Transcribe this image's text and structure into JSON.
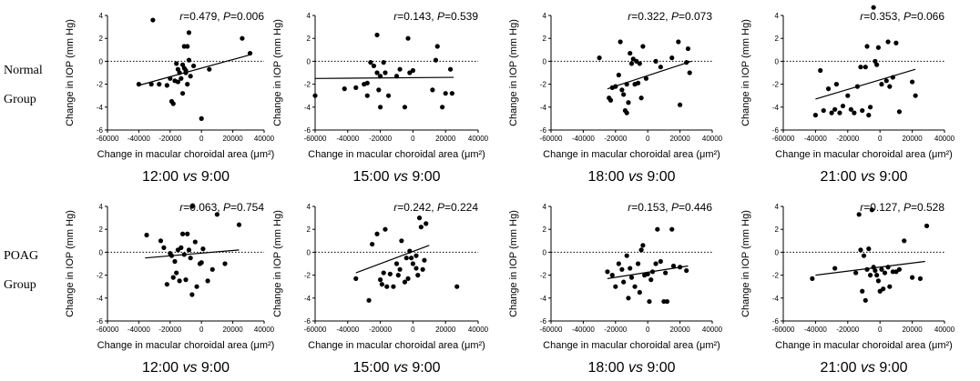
{
  "row_labels": [
    {
      "line1": "Normal",
      "line2": "Group"
    },
    {
      "line1": "POAG",
      "line2": "Group"
    }
  ],
  "chart_data": [
    {
      "type": "scatter",
      "group": "Normal",
      "caption": {
        "time": "12:00",
        "vs": "vs",
        "base": "9:00"
      },
      "r": "0.479",
      "p": "0.006",
      "xlabel": "Change in macular choroidal area (μm²)",
      "ylabel": "Change in IOP (mm Hg)",
      "xlim": [
        -60000,
        40000
      ],
      "ylim": [
        -6,
        4
      ],
      "xticks": [
        -60000,
        -40000,
        -20000,
        0,
        20000,
        40000
      ],
      "yticks": [
        -6,
        -4,
        -2,
        0,
        2,
        4
      ],
      "fit": [
        [
          -40000,
          -2.1
        ],
        [
          32000,
          0.6
        ]
      ],
      "points": [
        [
          -31000,
          3.6
        ],
        [
          -40000,
          -2.0
        ],
        [
          -32000,
          -2.0
        ],
        [
          -27000,
          -2.0
        ],
        [
          -22000,
          -2.1
        ],
        [
          -20000,
          -1.5
        ],
        [
          -19000,
          -3.5
        ],
        [
          -18000,
          -3.7
        ],
        [
          -17000,
          -1.7
        ],
        [
          -16000,
          -0.2
        ],
        [
          -15000,
          -0.7
        ],
        [
          -15000,
          -1.8
        ],
        [
          -14000,
          -1.0
        ],
        [
          -13000,
          -1.5
        ],
        [
          -12000,
          -0.3
        ],
        [
          -12000,
          -2.8
        ],
        [
          -11000,
          1.3
        ],
        [
          -11000,
          -0.6
        ],
        [
          -10000,
          -1.0
        ],
        [
          -10000,
          -0.8
        ],
        [
          -9000,
          1.3
        ],
        [
          -9000,
          -2.0
        ],
        [
          -8000,
          0.1
        ],
        [
          -8000,
          2.5
        ],
        [
          -7000,
          -1.3
        ],
        [
          -5000,
          -0.4
        ],
        [
          5000,
          -0.7
        ],
        [
          0,
          -5.0
        ],
        [
          26000,
          2.0
        ],
        [
          31000,
          0.7
        ]
      ]
    },
    {
      "type": "scatter",
      "group": "Normal",
      "caption": {
        "time": "15:00",
        "vs": "vs",
        "base": "9:00"
      },
      "r": "0.143",
      "p": "0.539",
      "xlabel": "Change in macular choroidal area (μm²)",
      "ylabel": "Change in IOP (mm Hg)",
      "xlim": [
        -60000,
        40000
      ],
      "ylim": [
        -6,
        4
      ],
      "xticks": [
        -60000,
        -40000,
        -20000,
        0,
        20000,
        40000
      ],
      "yticks": [
        -6,
        -4,
        -2,
        0,
        2,
        4
      ],
      "fit": [
        [
          -60000,
          -1.5
        ],
        [
          25000,
          -1.4
        ]
      ],
      "points": [
        [
          -60000,
          -3.0
        ],
        [
          -42000,
          -2.4
        ],
        [
          -35000,
          -2.3
        ],
        [
          -30000,
          -2.0
        ],
        [
          -28000,
          -1.9
        ],
        [
          -28000,
          -3.0
        ],
        [
          -26000,
          -0.1
        ],
        [
          -24000,
          -0.4
        ],
        [
          -22000,
          2.3
        ],
        [
          -22000,
          -1.0
        ],
        [
          -21000,
          -2.5
        ],
        [
          -20000,
          -4.0
        ],
        [
          -20000,
          -1.3
        ],
        [
          -18000,
          -0.1
        ],
        [
          -17000,
          -1.0
        ],
        [
          -15000,
          -3.0
        ],
        [
          -10000,
          -1.3
        ],
        [
          -8000,
          -0.7
        ],
        [
          -5000,
          -4.0
        ],
        [
          -3000,
          2.0
        ],
        [
          -2000,
          -1.0
        ],
        [
          0,
          -0.8
        ],
        [
          12000,
          -2.5
        ],
        [
          14000,
          0.1
        ],
        [
          15000,
          1.3
        ],
        [
          18000,
          -4.0
        ],
        [
          20000,
          -2.8
        ],
        [
          23000,
          -0.7
        ],
        [
          24000,
          -2.8
        ]
      ]
    },
    {
      "type": "scatter",
      "group": "Normal",
      "caption": {
        "time": "18:00",
        "vs": "vs",
        "base": "9:00"
      },
      "r": "0.322",
      "p": "0.073",
      "xlabel": "Change in macular choroidal area (μm²)",
      "ylabel": "Change in IOP (mm Hg)",
      "xlim": [
        -60000,
        40000
      ],
      "ylim": [
        -6,
        4
      ],
      "xticks": [
        -60000,
        -40000,
        -20000,
        0,
        20000,
        40000
      ],
      "yticks": [
        -6,
        -4,
        -2,
        0,
        2,
        4
      ],
      "fit": [
        [
          -25000,
          -2.4
        ],
        [
          27000,
          0.0
        ]
      ],
      "points": [
        [
          -30000,
          0.3
        ],
        [
          -24000,
          -3.2
        ],
        [
          -23000,
          -3.4
        ],
        [
          -22000,
          -2.3
        ],
        [
          -20000,
          -2.2
        ],
        [
          -18000,
          -1.2
        ],
        [
          -17000,
          1.7
        ],
        [
          -16000,
          -2.5
        ],
        [
          -15000,
          -2.9
        ],
        [
          -14000,
          -4.3
        ],
        [
          -13000,
          -4.5
        ],
        [
          -13000,
          -2.0
        ],
        [
          -12000,
          -3.6
        ],
        [
          -11000,
          0.7
        ],
        [
          -10000,
          -0.2
        ],
        [
          -9000,
          0.2
        ],
        [
          -8000,
          -2.0
        ],
        [
          -7000,
          0.0
        ],
        [
          -6000,
          -1.9
        ],
        [
          -5000,
          -0.2
        ],
        [
          -4000,
          -3.2
        ],
        [
          -3000,
          1.3
        ],
        [
          -1000,
          -1.5
        ],
        [
          5000,
          0.0
        ],
        [
          8000,
          -0.5
        ],
        [
          15000,
          0.3
        ],
        [
          19000,
          1.7
        ],
        [
          20000,
          -3.8
        ],
        [
          25000,
          1.1
        ],
        [
          24000,
          -0.1
        ],
        [
          26000,
          -1.0
        ]
      ]
    },
    {
      "type": "scatter",
      "group": "Normal",
      "caption": {
        "time": "21:00",
        "vs": "vs",
        "base": "9:00"
      },
      "r": "0.353",
      "p": "0.066",
      "xlabel": "Change in macular choroidal area (μm²)",
      "ylabel": "Change in IOP (mm Hg)",
      "xlim": [
        -60000,
        40000
      ],
      "ylim": [
        -6,
        4
      ],
      "xticks": [
        -60000,
        -40000,
        -20000,
        0,
        20000,
        40000
      ],
      "yticks": [
        -6,
        -4,
        -2,
        0,
        2,
        4
      ],
      "fit": [
        [
          -40000,
          -3.3
        ],
        [
          22000,
          -0.7
        ]
      ],
      "points": [
        [
          -40000,
          -4.7
        ],
        [
          -37000,
          -0.8
        ],
        [
          -35000,
          -4.3
        ],
        [
          -32000,
          -2.4
        ],
        [
          -30000,
          -4.5
        ],
        [
          -28000,
          -4.2
        ],
        [
          -27000,
          -2.0
        ],
        [
          -25000,
          -4.5
        ],
        [
          -23000,
          -3.9
        ],
        [
          -20000,
          -3.0
        ],
        [
          -18000,
          -4.2
        ],
        [
          -16000,
          -4.5
        ],
        [
          -14000,
          -2.2
        ],
        [
          -12000,
          -0.5
        ],
        [
          -11000,
          -4.3
        ],
        [
          -9000,
          -0.5
        ],
        [
          -8000,
          1.3
        ],
        [
          -7000,
          -4.7
        ],
        [
          -6000,
          -4.0
        ],
        [
          -4000,
          4.7
        ],
        [
          -3000,
          0.0
        ],
        [
          -2000,
          -0.3
        ],
        [
          -1000,
          1.2
        ],
        [
          1000,
          -2.0
        ],
        [
          4000,
          -1.7
        ],
        [
          5000,
          1.7
        ],
        [
          6000,
          -2.2
        ],
        [
          8000,
          -1.4
        ],
        [
          10000,
          1.6
        ],
        [
          12000,
          -4.4
        ],
        [
          20000,
          -1.8
        ],
        [
          22000,
          -3.0
        ]
      ]
    },
    {
      "type": "scatter",
      "group": "POAG",
      "caption": {
        "time": "12:00",
        "vs": "vs",
        "base": "9:00"
      },
      "r": "0.063",
      "p": "0.754",
      "xlabel": "Change in macular choroidal area (μm²)",
      "ylabel": "Change in IOP (mm Hg)",
      "xlim": [
        -60000,
        40000
      ],
      "ylim": [
        -6,
        4
      ],
      "xticks": [
        -60000,
        -40000,
        -20000,
        0,
        20000,
        40000
      ],
      "yticks": [
        -6,
        -4,
        -2,
        0,
        2,
        4
      ],
      "fit": [
        [
          -36000,
          -0.5
        ],
        [
          24000,
          0.2
        ]
      ],
      "points": [
        [
          -35000,
          1.5
        ],
        [
          -26000,
          1.0
        ],
        [
          -24000,
          0.4
        ],
        [
          -22000,
          -2.8
        ],
        [
          -20000,
          -0.1
        ],
        [
          -19000,
          -0.3
        ],
        [
          -18000,
          -2.2
        ],
        [
          -17000,
          -0.8
        ],
        [
          -16000,
          -1.8
        ],
        [
          -15000,
          0.2
        ],
        [
          -14000,
          -2.5
        ],
        [
          -13000,
          0.4
        ],
        [
          -12000,
          1.6
        ],
        [
          -11000,
          -0.2
        ],
        [
          -10000,
          -2.4
        ],
        [
          -9000,
          1.6
        ],
        [
          -8000,
          0.2
        ],
        [
          -7000,
          -0.5
        ],
        [
          -6000,
          4.0
        ],
        [
          -6000,
          -3.7
        ],
        [
          -4000,
          0.9
        ],
        [
          -3000,
          -3.0
        ],
        [
          -1000,
          -1.0
        ],
        [
          0,
          -0.9
        ],
        [
          1000,
          0.3
        ],
        [
          4000,
          -2.5
        ],
        [
          7000,
          -1.5
        ],
        [
          10000,
          3.3
        ],
        [
          15000,
          -1.0
        ],
        [
          24000,
          2.4
        ]
      ]
    },
    {
      "type": "scatter",
      "group": "POAG",
      "caption": {
        "time": "15:00",
        "vs": "vs",
        "base": "9:00"
      },
      "r": "0.242",
      "p": "0.224",
      "xlabel": "Change in macular choroidal area (μm²)",
      "ylabel": "Change in IOP (mm Hg)",
      "xlim": [
        -60000,
        40000
      ],
      "ylim": [
        -6,
        4
      ],
      "xticks": [
        -60000,
        -40000,
        -20000,
        0,
        20000,
        40000
      ],
      "yticks": [
        -6,
        -4,
        -2,
        0,
        2,
        4
      ],
      "fit": [
        [
          -35000,
          -1.8
        ],
        [
          10000,
          0.6
        ]
      ],
      "points": [
        [
          -35000,
          -2.3
        ],
        [
          -27000,
          -4.2
        ],
        [
          -25000,
          0.7
        ],
        [
          -22000,
          1.6
        ],
        [
          -20000,
          -2.4
        ],
        [
          -19000,
          -2.8
        ],
        [
          -18000,
          -1.8
        ],
        [
          -17000,
          2.0
        ],
        [
          -16000,
          -3.0
        ],
        [
          -14000,
          -1.9
        ],
        [
          -12000,
          -3.0
        ],
        [
          -10000,
          -1.0
        ],
        [
          -9000,
          -2.0
        ],
        [
          -8000,
          -1.5
        ],
        [
          -7000,
          1.0
        ],
        [
          -5000,
          -2.6
        ],
        [
          -4000,
          -0.5
        ],
        [
          -3000,
          -2.3
        ],
        [
          -2000,
          0.1
        ],
        [
          -1000,
          -0.5
        ],
        [
          0,
          -1.0
        ],
        [
          2000,
          -1.4
        ],
        [
          3000,
          -2.0
        ],
        [
          4000,
          3.0
        ],
        [
          5000,
          2.2
        ],
        [
          6000,
          -1.5
        ],
        [
          7000,
          -0.7
        ],
        [
          8000,
          2.5
        ],
        [
          27000,
          -3.0
        ],
        [
          2000,
          -0.3
        ]
      ]
    },
    {
      "type": "scatter",
      "group": "POAG",
      "caption": {
        "time": "18:00",
        "vs": "vs",
        "base": "9:00"
      },
      "r": "0.153",
      "p": "0.446",
      "xlabel": "Change in macular choroidal area (μm²)",
      "ylabel": "Change in IOP (mm Hg)",
      "xlim": [
        -60000,
        40000
      ],
      "ylim": [
        -6,
        4
      ],
      "xticks": [
        -60000,
        -40000,
        -20000,
        0,
        20000,
        40000
      ],
      "yticks": [
        -6,
        -4,
        -2,
        0,
        2,
        4
      ],
      "fit": [
        [
          -25000,
          -2.3
        ],
        [
          25000,
          -1.2
        ]
      ],
      "points": [
        [
          -25000,
          -1.7
        ],
        [
          -22000,
          -2.0
        ],
        [
          -20000,
          -3.0
        ],
        [
          -18000,
          -1.0
        ],
        [
          -16000,
          -1.5
        ],
        [
          -15000,
          -2.6
        ],
        [
          -13000,
          -0.3
        ],
        [
          -12000,
          -4.0
        ],
        [
          -11000,
          -1.4
        ],
        [
          -10000,
          -2.2
        ],
        [
          -8000,
          -3.0
        ],
        [
          -6000,
          -1.0
        ],
        [
          -5000,
          -3.5
        ],
        [
          -4000,
          0.2
        ],
        [
          -3000,
          0.6
        ],
        [
          -2000,
          -2.0
        ],
        [
          0,
          -1.9
        ],
        [
          1000,
          -4.3
        ],
        [
          2000,
          -2.4
        ],
        [
          3000,
          -1.7
        ],
        [
          5000,
          -1.0
        ],
        [
          6000,
          2.0
        ],
        [
          8000,
          -0.8
        ],
        [
          10000,
          -4.3
        ],
        [
          11000,
          -1.8
        ],
        [
          12000,
          -4.3
        ],
        [
          15000,
          2.0
        ],
        [
          16000,
          -1.2
        ],
        [
          20000,
          -1.3
        ],
        [
          24000,
          -1.6
        ]
      ]
    },
    {
      "type": "scatter",
      "group": "POAG",
      "caption": {
        "time": "21:00",
        "vs": "vs",
        "base": "9:00"
      },
      "r": "0.127",
      "p": "0.528",
      "xlabel": "Change in macular choroidal area (μm²)",
      "ylabel": "Change in IOP (mm Hg)",
      "xlim": [
        -60000,
        40000
      ],
      "ylim": [
        -6,
        4
      ],
      "xticks": [
        -60000,
        -40000,
        -20000,
        0,
        20000,
        40000
      ],
      "yticks": [
        -6,
        -4,
        -2,
        0,
        2,
        4
      ],
      "fit": [
        [
          -40000,
          -2.0
        ],
        [
          28000,
          -0.8
        ]
      ],
      "points": [
        [
          -42000,
          -2.3
        ],
        [
          -28000,
          -1.4
        ],
        [
          -15000,
          -1.8
        ],
        [
          -13000,
          3.3
        ],
        [
          -12000,
          0.2
        ],
        [
          -11000,
          -3.4
        ],
        [
          -10000,
          -0.3
        ],
        [
          -9000,
          -4.2
        ],
        [
          -8000,
          -1.5
        ],
        [
          -7000,
          0.3
        ],
        [
          -6000,
          -2.0
        ],
        [
          -5000,
          3.7
        ],
        [
          -4000,
          -1.3
        ],
        [
          -3000,
          -1.6
        ],
        [
          -2000,
          -2.0
        ],
        [
          -1000,
          -2.5
        ],
        [
          0,
          -3.4
        ],
        [
          1000,
          -1.5
        ],
        [
          2000,
          -3.2
        ],
        [
          3000,
          -1.8
        ],
        [
          5000,
          -1.3
        ],
        [
          6000,
          -3.0
        ],
        [
          8000,
          -1.7
        ],
        [
          10000,
          -1.7
        ],
        [
          12000,
          -1.5
        ],
        [
          15000,
          1.0
        ],
        [
          20000,
          -2.2
        ],
        [
          25000,
          -2.3
        ],
        [
          29000,
          2.3
        ]
      ]
    }
  ]
}
